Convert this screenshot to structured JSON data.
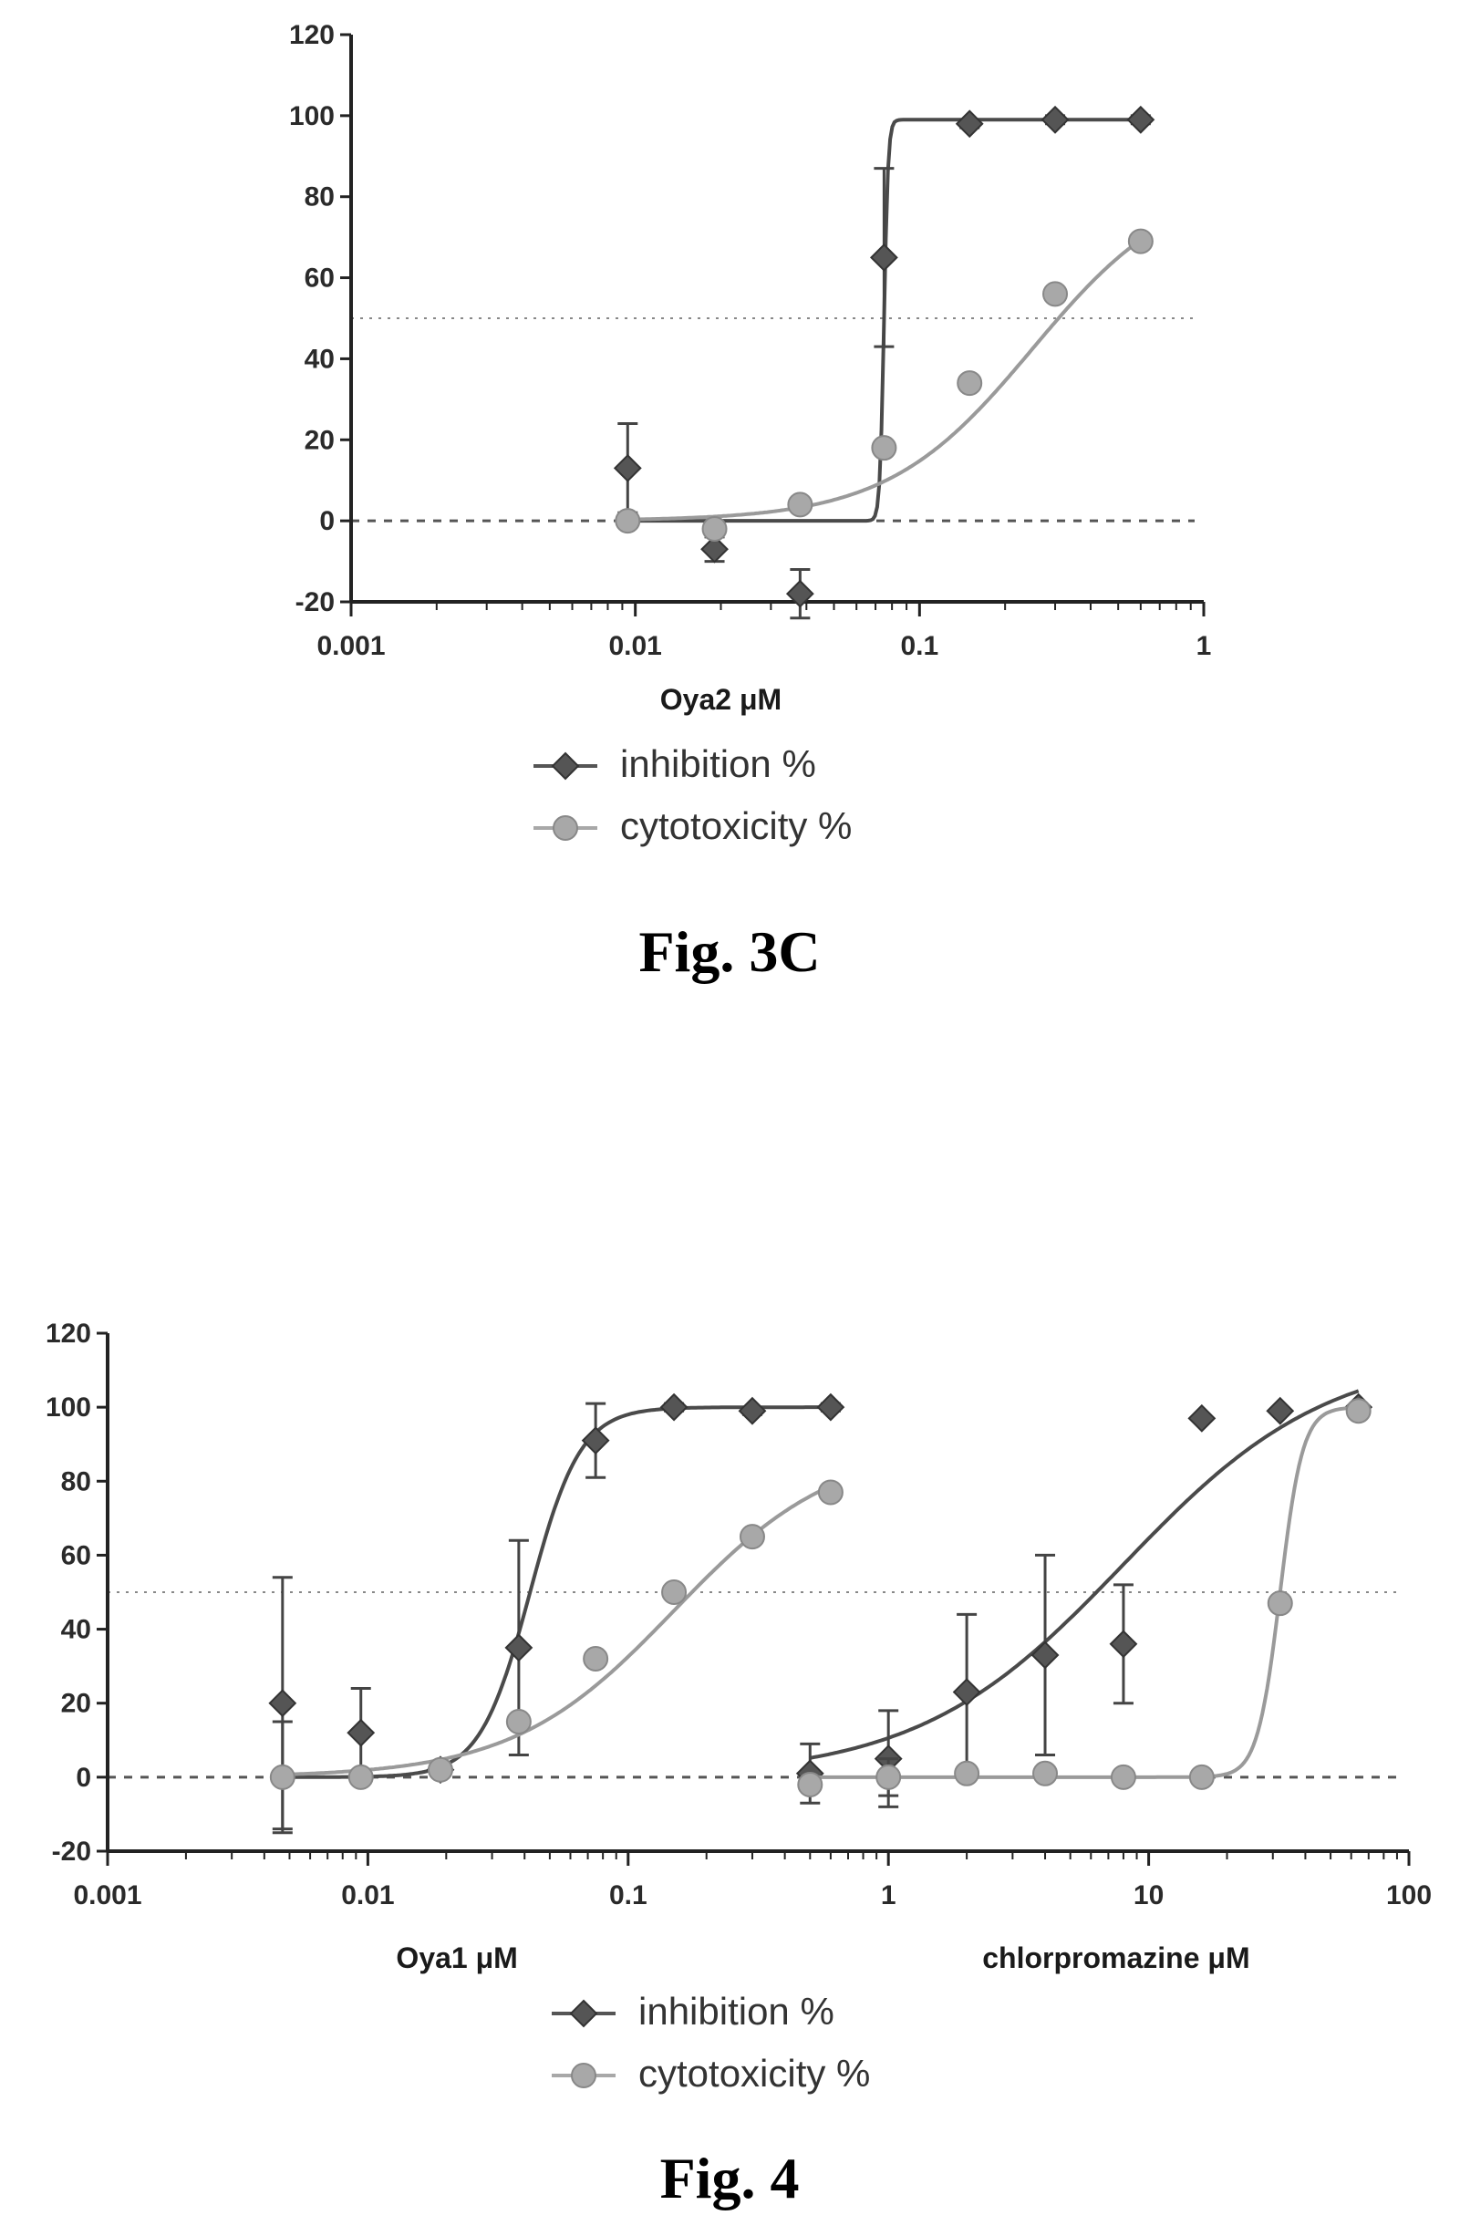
{
  "chart_data": [
    {
      "type": "scatter",
      "caption": "Fig. 3C",
      "xscale": "log",
      "xlim": [
        0.001,
        1
      ],
      "ylim": [
        -20,
        120
      ],
      "xticks": [
        "0.001",
        "0.01",
        "0.1",
        "1"
      ],
      "yticks": [
        "-20",
        "0",
        "20",
        "40",
        "60",
        "80",
        "100",
        "120"
      ],
      "xlabels": [
        {
          "text": "Oya2 μM",
          "x": 0.02
        }
      ],
      "reference_lines": [
        {
          "y": 50,
          "style": "dotted"
        },
        {
          "y": 0,
          "style": "dashed"
        }
      ],
      "legend": [
        {
          "label": "inhibition %",
          "marker": "diamond",
          "color": "#555555"
        },
        {
          "label": "cytotoxicity %",
          "marker": "circle",
          "color": "#a8a8a8"
        }
      ],
      "series": [
        {
          "label": "inhibition %",
          "color": "#555555",
          "marker": "diamond",
          "points": [
            {
              "x": 0.0094,
              "y": 13,
              "err": 11
            },
            {
              "x": 0.019,
              "y": -7,
              "err": 3
            },
            {
              "x": 0.038,
              "y": -18,
              "err": 6
            },
            {
              "x": 0.075,
              "y": 65,
              "err": 22
            },
            {
              "x": 0.15,
              "y": 98,
              "err": 1
            },
            {
              "x": 0.3,
              "y": 99,
              "err": 1
            },
            {
              "x": 0.6,
              "y": 99,
              "err": 1
            }
          ],
          "curve": {
            "bottom": 0,
            "top": 99,
            "ec50": 0.075,
            "hill": 60,
            "from": 0.009,
            "to": 0.6
          }
        },
        {
          "label": "cytotoxicity %",
          "color": "#a8a8a8",
          "marker": "circle",
          "points": [
            {
              "x": 0.0094,
              "y": 0,
              "err": 0
            },
            {
              "x": 0.019,
              "y": -2,
              "err": 0
            },
            {
              "x": 0.038,
              "y": 4,
              "err": 0
            },
            {
              "x": 0.075,
              "y": 18,
              "err": 0
            },
            {
              "x": 0.15,
              "y": 34,
              "err": 0
            },
            {
              "x": 0.3,
              "y": 56,
              "err": 0
            },
            {
              "x": 0.6,
              "y": 69,
              "err": 0
            }
          ],
          "curve": {
            "bottom": 0,
            "top": 85,
            "ec50": 0.25,
            "hill": 1.7,
            "from": 0.009,
            "to": 0.6
          }
        }
      ]
    },
    {
      "type": "scatter",
      "caption": "Fig. 4",
      "xscale": "log",
      "xlim": [
        0.001,
        100
      ],
      "ylim": [
        -20,
        120
      ],
      "xticks": [
        "0.001",
        "0.01",
        "0.1",
        "1",
        "10",
        "100"
      ],
      "yticks": [
        "-20",
        "0",
        "20",
        "40",
        "60",
        "80",
        "100",
        "120"
      ],
      "xlabels": [
        {
          "text": "Oya1 μM",
          "x": 0.022
        },
        {
          "text": "chlorpromazine μM",
          "x": 7.5
        }
      ],
      "reference_lines": [
        {
          "y": 50,
          "style": "dotted"
        },
        {
          "y": 0,
          "style": "dashed"
        }
      ],
      "legend": [
        {
          "label": "inhibition %",
          "marker": "diamond",
          "color": "#555555"
        },
        {
          "label": "cytotoxicity %",
          "marker": "circle",
          "color": "#a8a8a8"
        }
      ],
      "series": [
        {
          "label": "inhibition %",
          "color": "#555555",
          "marker": "diamond",
          "points": [
            {
              "x": 0.0047,
              "y": 20,
              "err": 34
            },
            {
              "x": 0.0094,
              "y": 12,
              "err": 12
            },
            {
              "x": 0.019,
              "y": 2,
              "err": 1
            },
            {
              "x": 0.038,
              "y": 35,
              "err": 29
            },
            {
              "x": 0.075,
              "y": 91,
              "err": 10
            },
            {
              "x": 0.15,
              "y": 100,
              "err": 1
            },
            {
              "x": 0.3,
              "y": 99,
              "err": 1
            },
            {
              "x": 0.6,
              "y": 100,
              "err": 1
            }
          ],
          "curve": {
            "bottom": 0,
            "top": 100,
            "ec50": 0.042,
            "hill": 4.5,
            "from": 0.0047,
            "to": 0.6
          }
        },
        {
          "label": "cytotoxicity %",
          "color": "#a8a8a8",
          "marker": "circle",
          "points": [
            {
              "x": 0.0047,
              "y": 0,
              "err": 15
            },
            {
              "x": 0.0094,
              "y": 0,
              "err": 0
            },
            {
              "x": 0.019,
              "y": 2,
              "err": 0
            },
            {
              "x": 0.038,
              "y": 15,
              "err": 0
            },
            {
              "x": 0.075,
              "y": 32,
              "err": 0
            },
            {
              "x": 0.15,
              "y": 50,
              "err": 0
            },
            {
              "x": 0.3,
              "y": 65,
              "err": 0
            },
            {
              "x": 0.6,
              "y": 77,
              "err": 0
            }
          ],
          "curve": {
            "bottom": 0,
            "top": 90,
            "ec50": 0.15,
            "hill": 1.4,
            "from": 0.0047,
            "to": 0.6
          }
        },
        {
          "label": "inhibition %",
          "color": "#555555",
          "marker": "diamond",
          "points": [
            {
              "x": 0.5,
              "y": 1,
              "err": 8
            },
            {
              "x": 1,
              "y": 5,
              "err": 13
            },
            {
              "x": 2,
              "y": 23,
              "err": 21
            },
            {
              "x": 4,
              "y": 33,
              "err": 27
            },
            {
              "x": 8,
              "y": 36,
              "err": 16
            },
            {
              "x": 16,
              "y": 97,
              "err": 0
            },
            {
              "x": 32,
              "y": 99,
              "err": 0
            },
            {
              "x": 64,
              "y": 100,
              "err": 0
            }
          ],
          "curve": {
            "bottom": 0,
            "top": 115,
            "ec50": 8,
            "hill": 1.1,
            "from": 0.5,
            "to": 64
          }
        },
        {
          "label": "cytotoxicity %",
          "color": "#a8a8a8",
          "marker": "circle",
          "points": [
            {
              "x": 0.5,
              "y": -2,
              "err": 0
            },
            {
              "x": 1,
              "y": 0,
              "err": 5
            },
            {
              "x": 2,
              "y": 1,
              "err": 0
            },
            {
              "x": 4,
              "y": 1,
              "err": 0
            },
            {
              "x": 8,
              "y": 0,
              "err": 0
            },
            {
              "x": 16,
              "y": 0,
              "err": 0
            },
            {
              "x": 32,
              "y": 47,
              "err": 0
            },
            {
              "x": 64,
              "y": 99,
              "err": 0
            }
          ],
          "curve": {
            "bottom": 0,
            "top": 100,
            "ec50": 32,
            "hill": 10,
            "from": 0.5,
            "to": 64
          }
        }
      ]
    }
  ]
}
